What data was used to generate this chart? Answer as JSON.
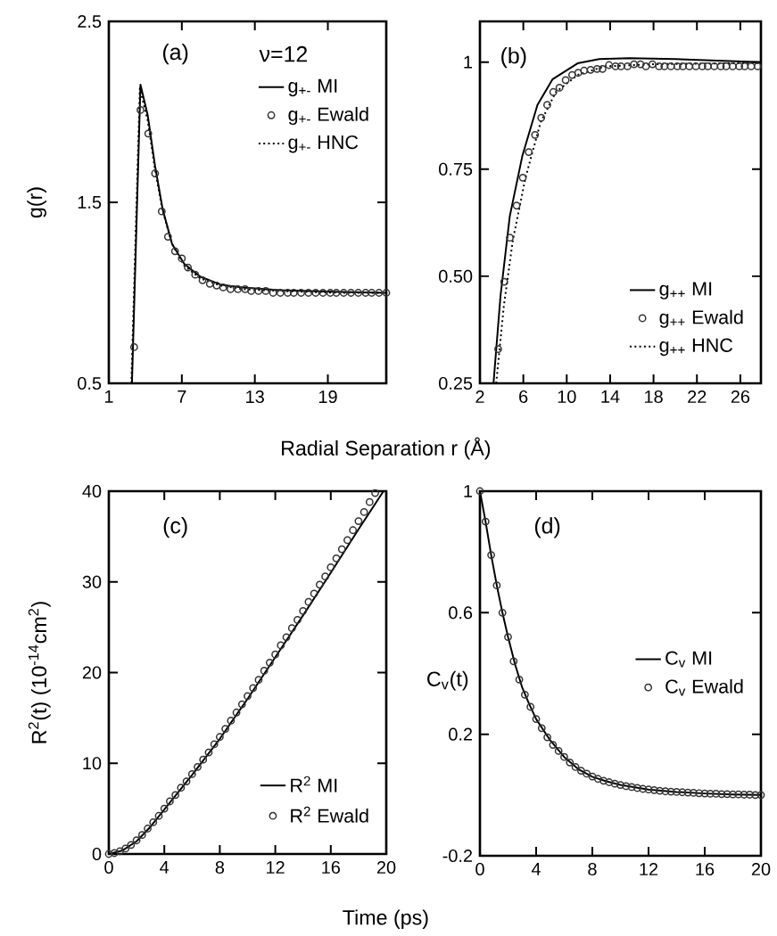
{
  "chart_data": [
    {
      "type": "line",
      "xlabel": "Radial Separation r (Å)",
      "ylabel": "g(r)",
      "annotations": [
        "(a)",
        "ν=12"
      ],
      "xlim": [
        1,
        23.8
      ],
      "ylim": [
        0.5,
        2.5
      ],
      "xticks": [
        1,
        7,
        13,
        19
      ],
      "yticks": [
        0.5,
        1.5,
        2.5
      ],
      "legend": "top right",
      "tick_labels": true,
      "series": [
        {
          "name": "g$_{+-}$ MI",
          "type": "line",
          "color": "#000000",
          "line_style": "solid",
          "x": [
            2.9,
            3.6,
            4.2,
            4.8,
            5.43,
            6.2,
            7.2,
            8.5,
            10.2,
            12,
            15,
            20,
            23.8
          ],
          "values": [
            0.5,
            2.15,
            1.98,
            1.7,
            1.46,
            1.27,
            1.16,
            1.09,
            1.045,
            1.03,
            1.015,
            1.005,
            1.0
          ]
        },
        {
          "name": "g$_{+-}$ Ewald",
          "type": "scatter",
          "color": "#333333",
          "marker": "circle",
          "x": [
            3.08,
            3.6,
            4.24,
            4.8,
            5.35,
            5.86,
            6.44,
            7.0,
            7.5,
            8.1,
            8.7,
            9.3,
            9.86,
            10.4,
            11.0,
            11.6,
            12.2,
            12.7,
            13.3,
            13.9,
            14.5,
            15.1,
            15.7,
            16.2,
            16.8,
            17.4,
            18.0,
            18.6,
            19.2,
            19.7,
            20.3,
            20.9,
            21.5,
            22.1,
            22.6,
            23.2,
            23.8
          ],
          "values": [
            0.7,
            2.01,
            1.88,
            1.66,
            1.45,
            1.31,
            1.23,
            1.19,
            1.14,
            1.1,
            1.07,
            1.05,
            1.04,
            1.03,
            1.02,
            1.02,
            1.02,
            1.01,
            1.01,
            1.01,
            1.0,
            1.0,
            1.0,
            1.0,
            1.0,
            1.0,
            1.0,
            1.0,
            1.0,
            1.0,
            1.0,
            1.0,
            1.0,
            1.0,
            1.0,
            1.0,
            1.0
          ]
        },
        {
          "name": "g$_{+-}$ HNC",
          "type": "line",
          "color": "#000000",
          "line_style": "dotted",
          "x": [
            2.85,
            3.55,
            4.2,
            4.8,
            5.4,
            6.2,
            7.2,
            8.5,
            10.2,
            12,
            15,
            20,
            23.8
          ],
          "values": [
            0.5,
            2.13,
            1.95,
            1.68,
            1.46,
            1.27,
            1.15,
            1.08,
            1.04,
            1.02,
            1.01,
            1.0,
            1.0
          ]
        }
      ]
    },
    {
      "type": "line",
      "annotations": [
        "(b)"
      ],
      "xlim": [
        2,
        27.9
      ],
      "ylim": [
        0.25,
        1.095
      ],
      "xticks": [
        2,
        6,
        10,
        14,
        18,
        22,
        26
      ],
      "yticks": [
        0.25,
        {
          "value": 0.5,
          "label": "0.50"
        },
        0.75,
        1
      ],
      "legend": "bottom right",
      "tick_labels": true,
      "series": [
        {
          "name": "g$_{++}$ MI",
          "type": "line",
          "color": "#000000",
          "line_style": "solid",
          "x": [
            3.25,
            3.9,
            4.75,
            5.9,
            7.3,
            8.7,
            11,
            13,
            15.8,
            20,
            27.9
          ],
          "values": [
            0.25,
            0.455,
            0.64,
            0.78,
            0.9,
            0.96,
            0.997,
            1.007,
            1.009,
            1.007,
            1.0
          ]
        },
        {
          "name": "g$_{++}$ Ewald",
          "type": "scatter",
          "color": "#333333",
          "marker": "circle",
          "x": [
            3.68,
            4.24,
            4.76,
            5.38,
            5.95,
            6.5,
            7.08,
            7.65,
            8.2,
            8.76,
            9.33,
            9.9,
            10.5,
            11.06,
            11.6,
            12.2,
            12.8,
            13.3,
            13.9,
            14.5,
            15.0,
            15.6,
            16.2,
            16.8,
            17.3,
            17.9,
            18.5,
            19.0,
            19.6,
            20.2,
            20.7,
            21.3,
            21.9,
            22.5,
            23.0,
            23.6,
            24.2,
            24.7,
            25.3,
            25.9,
            26.4,
            27.0,
            27.6
          ],
          "values": [
            0.33,
            0.487,
            0.59,
            0.665,
            0.73,
            0.79,
            0.83,
            0.87,
            0.9,
            0.93,
            0.94,
            0.958,
            0.97,
            0.975,
            0.98,
            0.982,
            0.984,
            0.984,
            0.993,
            0.99,
            0.99,
            0.99,
            0.995,
            0.995,
            0.99,
            0.995,
            0.99,
            0.99,
            0.99,
            0.99,
            0.99,
            0.99,
            0.99,
            0.99,
            0.99,
            0.99,
            0.99,
            0.99,
            0.99,
            0.99,
            0.99,
            0.99,
            0.99
          ]
        },
        {
          "name": "g$_{++}$ HNC",
          "type": "line",
          "color": "#000000",
          "line_style": "dotted",
          "x": [
            3.5,
            4.2,
            5.04,
            6.2,
            7.6,
            9,
            11,
            13.5,
            18,
            27.9
          ],
          "values": [
            0.25,
            0.43,
            0.585,
            0.73,
            0.86,
            0.93,
            0.97,
            0.99,
            0.995,
            0.998
          ]
        }
      ]
    },
    {
      "type": "line",
      "xlabel": "Time (ps)",
      "ylabel": "R$^{2}$(t) (10$^{-14}$cm$^{2}$)",
      "annotations": [
        "(c)"
      ],
      "xlim": [
        0,
        20
      ],
      "ylim": [
        0,
        40
      ],
      "xticks": [
        0,
        4,
        8,
        12,
        16,
        20
      ],
      "yticks": [
        0,
        10,
        20,
        30,
        40
      ],
      "legend": "bottom right",
      "tick_labels": true,
      "series": [
        {
          "name": "R$^{2}$ MI",
          "type": "line",
          "color": "#000000",
          "line_style": "solid",
          "x": [
            0,
            1,
            2,
            3,
            4,
            6,
            8,
            10,
            12,
            14,
            16,
            18,
            19.8
          ],
          "values": [
            0,
            0.4,
            1.4,
            3.0,
            4.9,
            8.7,
            12.7,
            17.1,
            21.7,
            26.3,
            31.0,
            35.8,
            40
          ]
        },
        {
          "name": "R$^{2}$ Ewald",
          "type": "scatter",
          "color": "#333333",
          "marker": "circle",
          "x": [
            0,
            0.4,
            0.8,
            1.2,
            1.6,
            2.0,
            2.4,
            2.8,
            3.2,
            3.6,
            4.0,
            4.4,
            4.8,
            5.2,
            5.6,
            6.0,
            6.4,
            6.8,
            7.2,
            7.6,
            8.0,
            8.4,
            8.8,
            9.2,
            9.6,
            10.0,
            10.4,
            10.8,
            11.2,
            11.6,
            12.0,
            12.4,
            12.8,
            13.2,
            13.6,
            14.0,
            14.4,
            14.8,
            15.2,
            15.6,
            16.0,
            16.4,
            16.8,
            17.2,
            17.6,
            18.0,
            18.4,
            18.8,
            19.2
          ],
          "values": [
            0,
            0.1,
            0.3,
            0.6,
            1.0,
            1.5,
            2.1,
            2.8,
            3.5,
            4.2,
            5.0,
            5.8,
            6.5,
            7.3,
            8.0,
            8.8,
            9.6,
            10.4,
            11.2,
            12.1,
            12.9,
            13.8,
            14.7,
            15.6,
            16.5,
            17.4,
            18.3,
            19.2,
            20.2,
            21.1,
            22.0,
            23.0,
            23.9,
            24.9,
            25.8,
            26.8,
            27.8,
            28.7,
            29.7,
            30.6,
            31.6,
            32.6,
            33.6,
            34.6,
            35.7,
            36.7,
            37.7,
            38.8,
            39.8
          ]
        }
      ]
    },
    {
      "type": "line",
      "ylabel": "C$_{v}$(t)",
      "annotations": [
        "(d)"
      ],
      "xlim": [
        0,
        20
      ],
      "ylim": [
        -0.2,
        1
      ],
      "xticks": [
        0,
        4,
        8,
        12,
        16,
        20
      ],
      "yticks": [
        -0.2,
        0.2,
        0.6,
        1
      ],
      "legend": "right",
      "tick_labels": true,
      "series": [
        {
          "name": "C$_{v}$ MI",
          "type": "line",
          "color": "#000000",
          "line_style": "solid",
          "x": [
            0,
            0.4,
            0.8,
            1.2,
            1.6,
            2,
            2.5,
            3,
            3.5,
            4,
            5,
            6,
            7,
            8,
            9,
            10,
            12,
            14,
            16,
            18,
            20
          ],
          "values": [
            1,
            0.9,
            0.79,
            0.69,
            0.6,
            0.52,
            0.43,
            0.355,
            0.3,
            0.25,
            0.18,
            0.125,
            0.085,
            0.06,
            0.045,
            0.033,
            0.018,
            0.01,
            0.005,
            0.002,
            0
          ]
        },
        {
          "name": "C$_{v}$ Ewald",
          "type": "scatter",
          "color": "#333333",
          "marker": "circle",
          "x": [
            0,
            0.4,
            0.8,
            1.2,
            1.6,
            2.0,
            2.4,
            2.8,
            3.2,
            3.6,
            4.0,
            4.4,
            4.8,
            5.2,
            5.6,
            6.0,
            6.4,
            6.8,
            7.2,
            7.6,
            8.0,
            8.4,
            8.8,
            9.2,
            9.6,
            10.0,
            10.4,
            10.8,
            11.2,
            11.6,
            12.0,
            12.4,
            12.8,
            13.2,
            13.6,
            14.0,
            14.4,
            14.8,
            15.2,
            15.6,
            16.0,
            16.4,
            16.8,
            17.2,
            17.6,
            18.0,
            18.4,
            18.8,
            19.2,
            19.6,
            20.0
          ],
          "values": [
            1.0,
            0.9,
            0.79,
            0.69,
            0.6,
            0.52,
            0.44,
            0.38,
            0.33,
            0.29,
            0.25,
            0.22,
            0.19,
            0.165,
            0.145,
            0.125,
            0.107,
            0.092,
            0.08,
            0.07,
            0.061,
            0.053,
            0.047,
            0.042,
            0.037,
            0.033,
            0.029,
            0.026,
            0.023,
            0.02,
            0.018,
            0.016,
            0.014,
            0.012,
            0.011,
            0.01,
            0.009,
            0.008,
            0.007,
            0.006,
            0.005,
            0.004,
            0.004,
            0.003,
            0.003,
            0.002,
            0.002,
            0.001,
            0.001,
            0.0,
            0.0
          ]
        }
      ]
    }
  ]
}
